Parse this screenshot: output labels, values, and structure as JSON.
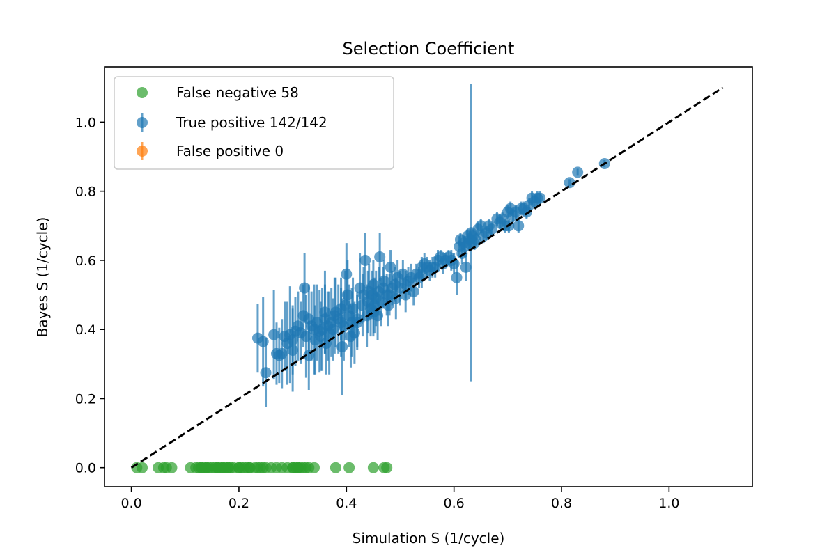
{
  "chart_data": {
    "type": "scatter",
    "title": "Selection Coefficient",
    "xlabel": "Simulation S (1/cycle)",
    "ylabel": "Bayes S (1/cycle)",
    "xlim": [
      -0.05,
      1.155
    ],
    "ylim": [
      -0.055,
      1.16
    ],
    "xticks": [
      0.0,
      0.2,
      0.4,
      0.6,
      0.8,
      1.0
    ],
    "yticks": [
      0.0,
      0.2,
      0.4,
      0.6,
      0.8,
      1.0
    ],
    "xtick_labels": [
      "0.0",
      "0.2",
      "0.4",
      "0.6",
      "0.8",
      "1.0"
    ],
    "ytick_labels": [
      "0.0",
      "0.2",
      "0.4",
      "0.6",
      "0.8",
      "1.0"
    ],
    "grid": false,
    "legend_position": "upper-left",
    "reference_line": {
      "x": [
        0.0,
        1.1
      ],
      "y": [
        0.0,
        1.1
      ],
      "style": "dashed",
      "color": "#000000"
    },
    "series": [
      {
        "name": "False negative 58",
        "color": "#2ca02c",
        "points": [
          [
            0.01,
            0
          ],
          [
            0.02,
            0
          ],
          [
            0.05,
            0
          ],
          [
            0.06,
            0
          ],
          [
            0.065,
            0
          ],
          [
            0.075,
            0
          ],
          [
            0.11,
            0
          ],
          [
            0.12,
            0
          ],
          [
            0.125,
            0
          ],
          [
            0.13,
            0
          ],
          [
            0.135,
            0
          ],
          [
            0.14,
            0
          ],
          [
            0.145,
            0
          ],
          [
            0.15,
            0
          ],
          [
            0.155,
            0
          ],
          [
            0.16,
            0
          ],
          [
            0.165,
            0
          ],
          [
            0.17,
            0
          ],
          [
            0.175,
            0
          ],
          [
            0.18,
            0
          ],
          [
            0.185,
            0
          ],
          [
            0.19,
            0
          ],
          [
            0.2,
            0
          ],
          [
            0.205,
            0
          ],
          [
            0.21,
            0
          ],
          [
            0.215,
            0
          ],
          [
            0.22,
            0
          ],
          [
            0.23,
            0
          ],
          [
            0.24,
            0
          ],
          [
            0.245,
            0
          ],
          [
            0.25,
            0
          ],
          [
            0.26,
            0
          ],
          [
            0.27,
            0
          ],
          [
            0.28,
            0
          ],
          [
            0.29,
            0
          ],
          [
            0.3,
            0
          ],
          [
            0.305,
            0
          ],
          [
            0.31,
            0
          ],
          [
            0.315,
            0
          ],
          [
            0.32,
            0
          ],
          [
            0.325,
            0
          ],
          [
            0.33,
            0
          ],
          [
            0.34,
            0
          ],
          [
            0.38,
            0
          ],
          [
            0.405,
            0
          ],
          [
            0.45,
            0
          ],
          [
            0.47,
            0
          ],
          [
            0.475,
            0
          ],
          [
            0.14,
            0
          ],
          [
            0.16,
            0
          ],
          [
            0.18,
            0
          ],
          [
            0.2,
            0
          ],
          [
            0.22,
            0
          ],
          [
            0.3,
            0
          ],
          [
            0.31,
            0
          ],
          [
            0.17,
            0
          ],
          [
            0.13,
            0
          ],
          [
            0.235,
            0
          ]
        ]
      },
      {
        "name": "True positive 142/142",
        "color": "#1f77b4",
        "points": [
          [
            0.235,
            0.375,
            0.1
          ],
          [
            0.245,
            0.365,
            0.13
          ],
          [
            0.25,
            0.275,
            0.1
          ],
          [
            0.265,
            0.385,
            0.13
          ],
          [
            0.275,
            0.325,
            0.08
          ],
          [
            0.28,
            0.33,
            0.1
          ],
          [
            0.285,
            0.38,
            0.1
          ],
          [
            0.29,
            0.36,
            0.12
          ],
          [
            0.295,
            0.385,
            0.14
          ],
          [
            0.3,
            0.34,
            0.12
          ],
          [
            0.305,
            0.395,
            0.1
          ],
          [
            0.31,
            0.41,
            0.1
          ],
          [
            0.315,
            0.39,
            0.09
          ],
          [
            0.32,
            0.44,
            0.09
          ],
          [
            0.322,
            0.52,
            0.1
          ],
          [
            0.325,
            0.38,
            0.12
          ],
          [
            0.33,
            0.325,
            0.1
          ],
          [
            0.335,
            0.41,
            0.1
          ],
          [
            0.34,
            0.4,
            0.13
          ],
          [
            0.342,
            0.37,
            0.1
          ],
          [
            0.345,
            0.42,
            0.11
          ],
          [
            0.35,
            0.395,
            0.12
          ],
          [
            0.352,
            0.38,
            0.1
          ],
          [
            0.355,
            0.4,
            0.12
          ],
          [
            0.36,
            0.43,
            0.1
          ],
          [
            0.362,
            0.36,
            0.09
          ],
          [
            0.365,
            0.41,
            0.1
          ],
          [
            0.368,
            0.39,
            0.12
          ],
          [
            0.372,
            0.42,
            0.1
          ],
          [
            0.375,
            0.4,
            0.09
          ],
          [
            0.378,
            0.44,
            0.11
          ],
          [
            0.38,
            0.45,
            0.1
          ],
          [
            0.385,
            0.43,
            0.1
          ],
          [
            0.39,
            0.42,
            0.1
          ],
          [
            0.392,
            0.35,
            0.14
          ],
          [
            0.395,
            0.41,
            0.1
          ],
          [
            0.398,
            0.47,
            0.1
          ],
          [
            0.4,
            0.56,
            0.09
          ],
          [
            0.402,
            0.5,
            0.1
          ],
          [
            0.405,
            0.44,
            0.09
          ],
          [
            0.408,
            0.38,
            0.09
          ],
          [
            0.41,
            0.42,
            0.1
          ],
          [
            0.412,
            0.46,
            0.09
          ],
          [
            0.415,
            0.39,
            0.09
          ],
          [
            0.42,
            0.43,
            0.08
          ],
          [
            0.425,
            0.52,
            0.1
          ],
          [
            0.43,
            0.47,
            0.09
          ],
          [
            0.432,
            0.5,
            0.08
          ],
          [
            0.435,
            0.6,
            0.08
          ],
          [
            0.438,
            0.44,
            0.09
          ],
          [
            0.44,
            0.48,
            0.09
          ],
          [
            0.442,
            0.51,
            0.08
          ],
          [
            0.445,
            0.46,
            0.08
          ],
          [
            0.448,
            0.5,
            0.07
          ],
          [
            0.45,
            0.53,
            0.07
          ],
          [
            0.452,
            0.47,
            0.08
          ],
          [
            0.455,
            0.49,
            0.08
          ],
          [
            0.458,
            0.44,
            0.07
          ],
          [
            0.46,
            0.51,
            0.07
          ],
          [
            0.462,
            0.61,
            0.07
          ],
          [
            0.465,
            0.48,
            0.07
          ],
          [
            0.468,
            0.52,
            0.06
          ],
          [
            0.47,
            0.54,
            0.06
          ],
          [
            0.475,
            0.5,
            0.06
          ],
          [
            0.478,
            0.47,
            0.06
          ],
          [
            0.482,
            0.58,
            0.05
          ],
          [
            0.485,
            0.52,
            0.05
          ],
          [
            0.49,
            0.53,
            0.05
          ],
          [
            0.492,
            0.49,
            0.06
          ],
          [
            0.495,
            0.55,
            0.05
          ],
          [
            0.5,
            0.52,
            0.05
          ],
          [
            0.505,
            0.56,
            0.04
          ],
          [
            0.51,
            0.53,
            0.04
          ],
          [
            0.515,
            0.54,
            0.04
          ],
          [
            0.52,
            0.55,
            0.04
          ],
          [
            0.525,
            0.51,
            0.04
          ],
          [
            0.53,
            0.56,
            0.03
          ],
          [
            0.535,
            0.55,
            0.03
          ],
          [
            0.54,
            0.58,
            0.03
          ],
          [
            0.545,
            0.59,
            0.03
          ],
          [
            0.55,
            0.58,
            0.03
          ],
          [
            0.555,
            0.57,
            0.03
          ],
          [
            0.56,
            0.58,
            0.03
          ],
          [
            0.565,
            0.58,
            0.03
          ],
          [
            0.57,
            0.6,
            0.03
          ],
          [
            0.575,
            0.61,
            0.02
          ],
          [
            0.58,
            0.59,
            0.03
          ],
          [
            0.585,
            0.6,
            0.02
          ],
          [
            0.59,
            0.61,
            0.02
          ],
          [
            0.595,
            0.6,
            0.03
          ],
          [
            0.6,
            0.59,
            0.03
          ],
          [
            0.605,
            0.55,
            0.05
          ],
          [
            0.61,
            0.64,
            0.03
          ],
          [
            0.612,
            0.66,
            0.02
          ],
          [
            0.615,
            0.62,
            0.03
          ],
          [
            0.618,
            0.65,
            0.02
          ],
          [
            0.62,
            0.64,
            0.03
          ],
          [
            0.622,
            0.58,
            0.04
          ],
          [
            0.625,
            0.67,
            0.02
          ],
          [
            0.628,
            0.65,
            0.02
          ],
          [
            0.63,
            0.66,
            0.03
          ],
          [
            0.632,
            0.68,
            0.43
          ],
          [
            0.635,
            0.67,
            0.02
          ],
          [
            0.638,
            0.65,
            0.02
          ],
          [
            0.64,
            0.66,
            0.02
          ],
          [
            0.645,
            0.69,
            0.02
          ],
          [
            0.65,
            0.7,
            0.02
          ],
          [
            0.655,
            0.67,
            0.02
          ],
          [
            0.66,
            0.68,
            0.02
          ],
          [
            0.665,
            0.7,
            0.02
          ],
          [
            0.67,
            0.69,
            0.02
          ],
          [
            0.68,
            0.72,
            0.02
          ],
          [
            0.685,
            0.71,
            0.02
          ],
          [
            0.69,
            0.72,
            0.02
          ],
          [
            0.695,
            0.7,
            0.02
          ],
          [
            0.7,
            0.74,
            0.02
          ],
          [
            0.702,
            0.7,
            0.02
          ],
          [
            0.705,
            0.75,
            0.02
          ],
          [
            0.71,
            0.73,
            0.02
          ],
          [
            0.715,
            0.74,
            0.02
          ],
          [
            0.72,
            0.7,
            0.02
          ],
          [
            0.725,
            0.75,
            0.02
          ],
          [
            0.73,
            0.75,
            0.02
          ],
          [
            0.735,
            0.74,
            0.02
          ],
          [
            0.74,
            0.76,
            0.02
          ],
          [
            0.745,
            0.78,
            0.02
          ],
          [
            0.75,
            0.77,
            0.02
          ],
          [
            0.755,
            0.78,
            0.02
          ],
          [
            0.76,
            0.78,
            0.02
          ],
          [
            0.815,
            0.825,
            0.01
          ],
          [
            0.83,
            0.855,
            0.01
          ],
          [
            0.88,
            0.88,
            0.01
          ],
          [
            0.27,
            0.33,
            0.09
          ],
          [
            0.3,
            0.37,
            0.1
          ],
          [
            0.33,
            0.43,
            0.1
          ],
          [
            0.36,
            0.45,
            0.12
          ],
          [
            0.39,
            0.46,
            0.09
          ],
          [
            0.42,
            0.42,
            0.08
          ],
          [
            0.45,
            0.45,
            0.07
          ],
          [
            0.48,
            0.5,
            0.06
          ],
          [
            0.51,
            0.5,
            0.05
          ],
          [
            0.54,
            0.56,
            0.04
          ]
        ]
      },
      {
        "name": "False positive 0",
        "color": "#ff7f0e",
        "points": []
      }
    ]
  }
}
